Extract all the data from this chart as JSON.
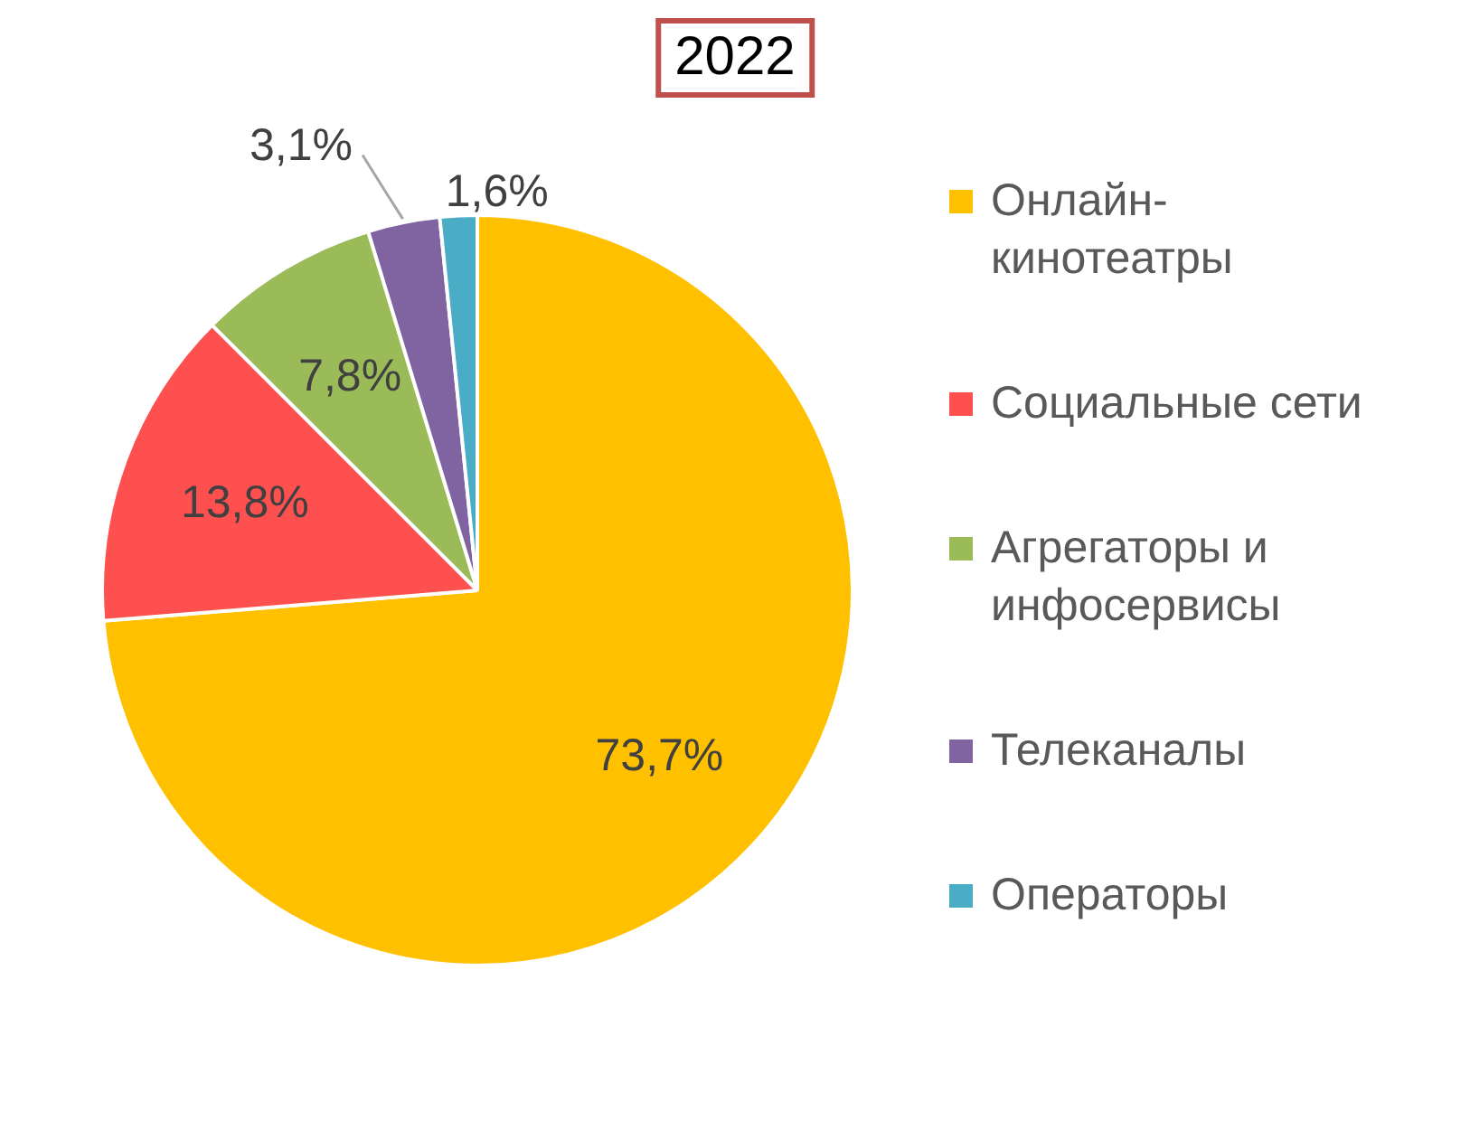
{
  "chart_data": {
    "type": "pie",
    "title": "2022",
    "categories": [
      "Онлайн-кинотеатры",
      "Социальные сети",
      "Агрегаторы и инфосервисы",
      "Телеканалы",
      "Операторы"
    ],
    "values": [
      73.7,
      13.8,
      7.8,
      3.1,
      1.6
    ],
    "colors": [
      "#ffc000",
      "#ff5050",
      "#9bbb59",
      "#8064a2",
      "#4bacc6"
    ],
    "value_labels": [
      "73,7%",
      "13,8%",
      "7,8%",
      "3,1%",
      "1,6%"
    ],
    "legend": "right"
  }
}
